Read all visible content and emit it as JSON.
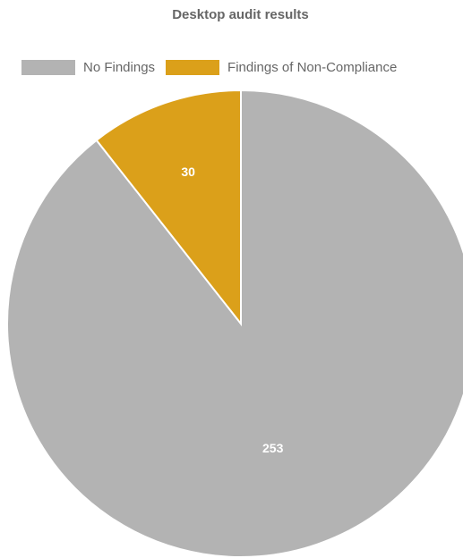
{
  "chart_data": {
    "type": "pie",
    "title": "Desktop audit results",
    "categories": [
      "No Findings",
      "Findings of Non-Compliance"
    ],
    "values": [
      253,
      30
    ],
    "colors": [
      "#b3b3b3",
      "#dba01a"
    ],
    "data_labels": [
      "253",
      "30"
    ],
    "legend_position": "top",
    "start_angle": "12 o'clock, counter-clockwise"
  }
}
